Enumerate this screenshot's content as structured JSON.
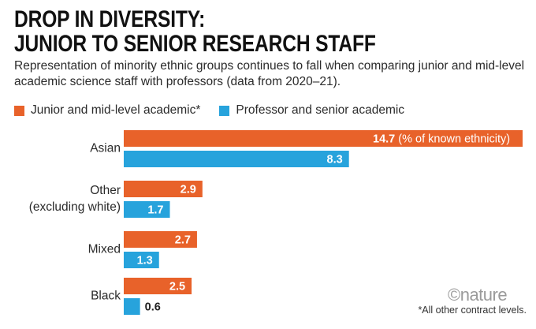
{
  "title_line1": "DROP IN DIVERSITY:",
  "title_line2": "JUNIOR TO SENIOR RESEARCH STAFF",
  "subtitle": "Representation of minority ethnic groups continues to fall when comparing junior and mid-level academic science staff with professors (data from 2020–21).",
  "legend": [
    {
      "label": "Junior and mid-level academic*",
      "color": "#e8622a"
    },
    {
      "label": "Professor and senior academic",
      "color": "#27a3dc"
    }
  ],
  "footnote": "*All other contract levels.",
  "logo_text": "©nature",
  "chart_data": {
    "type": "bar",
    "orientation": "horizontal",
    "categories": [
      "Asian",
      "Other (excluding white)",
      "Mixed",
      "Black"
    ],
    "category_lines": [
      [
        "Asian"
      ],
      [
        "Other",
        "(excluding white)"
      ],
      [
        "Mixed"
      ],
      [
        "Black"
      ]
    ],
    "series": [
      {
        "name": "Junior and mid-level academic*",
        "color": "#e8622a",
        "values": [
          14.7,
          2.9,
          2.7,
          2.5
        ]
      },
      {
        "name": "Professor and senior academic",
        "color": "#27a3dc",
        "values": [
          8.3,
          1.7,
          1.3,
          0.6
        ]
      }
    ],
    "annotation": "(% of known ethnicity)",
    "xlim": [
      0,
      14.7
    ],
    "grid": false
  }
}
